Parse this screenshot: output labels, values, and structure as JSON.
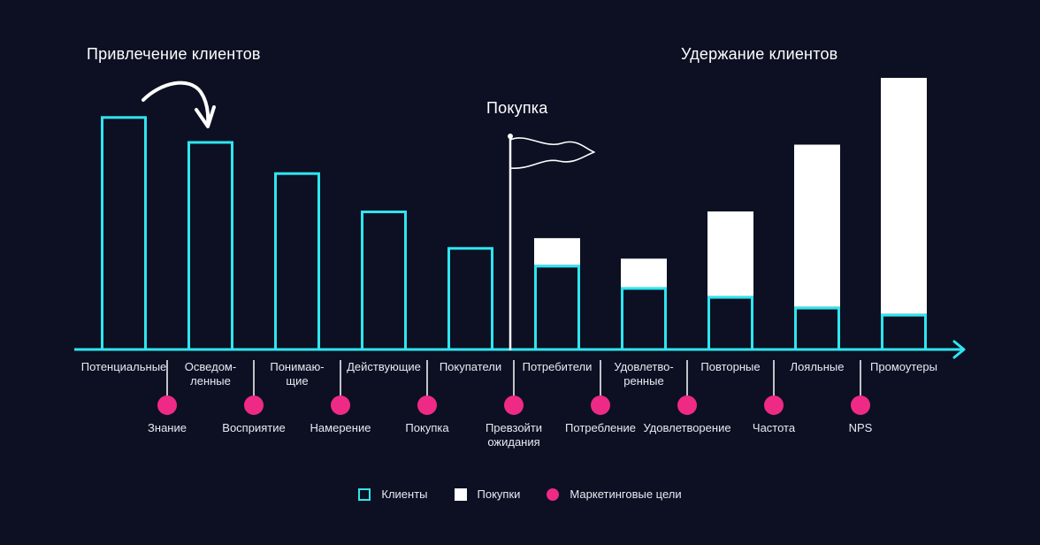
{
  "headers": {
    "acquisition": "Привлечение клиентов",
    "purchase": "Покупка",
    "retention": "Удержание клиентов"
  },
  "chart_data": {
    "type": "bar",
    "title": "",
    "categories": [
      "Потенциальные",
      "Осведом-\nленные",
      "Понимаю-\nщие",
      "Действующие",
      "Покупатели",
      "Потребители",
      "Удовлетво-\nренные",
      "Повторные",
      "Лояльные",
      "Промоутеры"
    ],
    "series": [
      {
        "name": "Клиенты",
        "values": [
          262,
          234,
          199,
          156,
          115,
          95,
          70,
          60,
          48,
          40
        ]
      },
      {
        "name": "Покупки",
        "values": [
          0,
          0,
          0,
          0,
          0,
          30,
          32,
          95,
          182,
          265
        ]
      }
    ],
    "goals": [
      "Знание",
      "Восприятие",
      "Намерение",
      "Покупка",
      "Превзойти\nожидания",
      "Потребление",
      "Удовлетворение",
      "Частота",
      "NPS"
    ],
    "ylim": [
      0,
      305
    ],
    "xlabel": "",
    "ylabel": "",
    "legend": [
      {
        "label": "Клиенты",
        "kind": "clients"
      },
      {
        "label": "Покупки",
        "kind": "purchases"
      },
      {
        "label": "Маркетинговые цели",
        "kind": "goals"
      }
    ]
  },
  "colors": {
    "background": "#0c1022",
    "clients": "#2ee6f0",
    "purchases": "#ffffff",
    "goals": "#ee2a86",
    "text": "#e8eaf2"
  },
  "icons": [
    "curved-arrow-icon",
    "flag-icon"
  ]
}
